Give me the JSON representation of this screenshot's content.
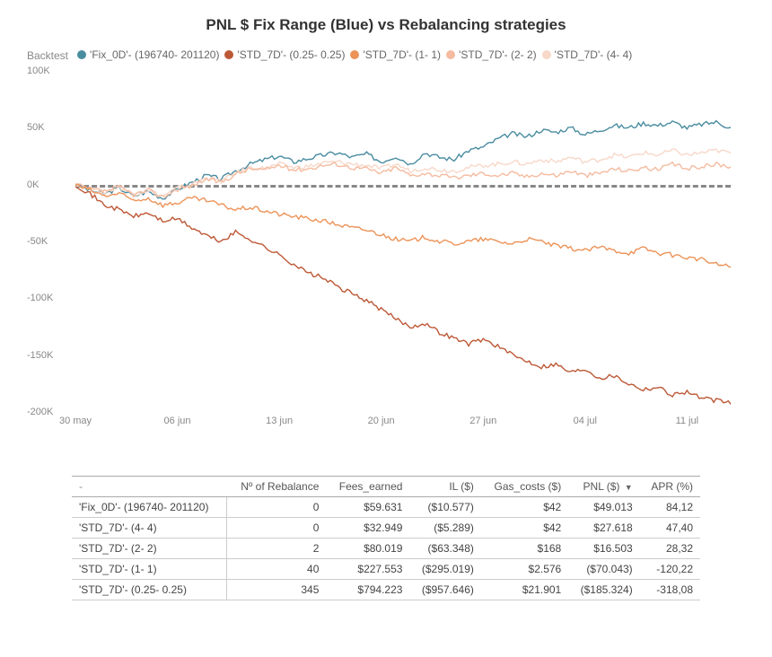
{
  "chart": {
    "type": "line",
    "title": "PNL $ Fix Range (Blue) vs Rebalancing strategies",
    "title_fontsize": 17,
    "legend_label": "Backtest",
    "legend": [
      {
        "name": "'Fix_0D'- (196740- 201120)",
        "color": "#4a8ca0"
      },
      {
        "name": "'STD_7D'- (0.25- 0.25)",
        "color": "#bd5836"
      },
      {
        "name": "'STD_7D'- (1- 1)",
        "color": "#ec9358"
      },
      {
        "name": "'STD_7D'- (2- 2)",
        "color": "#f4bba0"
      },
      {
        "name": "'STD_7D'- (4- 4)",
        "color": "#f7d8c9"
      }
    ],
    "background_color": "#ffffff",
    "zero_line_color": "#888888",
    "grid": false,
    "ylim": [
      -200000,
      100000
    ],
    "yticks": [
      {
        "v": 100000,
        "label": "100K"
      },
      {
        "v": 50000,
        "label": "50K"
      },
      {
        "v": 0,
        "label": "0K"
      },
      {
        "v": -50000,
        "label": "-50K"
      },
      {
        "v": -100000,
        "label": "-100K"
      },
      {
        "v": -150000,
        "label": "-150K"
      },
      {
        "v": -200000,
        "label": "-200K"
      }
    ],
    "xlim": [
      0,
      45
    ],
    "xticks": [
      {
        "v": 0,
        "label": "30 may"
      },
      {
        "v": 7,
        "label": "06 jun"
      },
      {
        "v": 14,
        "label": "13 jun"
      },
      {
        "v": 21,
        "label": "20 jun"
      },
      {
        "v": 28,
        "label": "27 jun"
      },
      {
        "v": 35,
        "label": "04 jul"
      },
      {
        "v": 42,
        "label": "11 jul"
      }
    ],
    "line_width": 1.4,
    "series": [
      {
        "color": "#4a8ca0",
        "name": "Fix_0D",
        "y": [
          0,
          -5,
          -8,
          -3,
          -10,
          -6,
          -12,
          -4,
          2,
          8,
          5,
          12,
          18,
          22,
          25,
          20,
          23,
          26,
          28,
          24,
          27,
          20,
          25,
          18,
          28,
          24,
          22,
          30,
          33,
          40,
          45,
          42,
          48,
          46,
          50,
          44,
          48,
          52,
          50,
          54,
          52,
          55,
          50,
          53,
          55,
          50
        ]
      },
      {
        "color": "#f7d8c9",
        "name": "STD_7D 4-4",
        "y": [
          0,
          -4,
          -7,
          -2,
          -8,
          -5,
          -10,
          -3,
          0,
          6,
          3,
          10,
          15,
          14,
          18,
          15,
          16,
          19,
          20,
          18,
          17,
          14,
          18,
          12,
          15,
          13,
          12,
          15,
          17,
          18,
          20,
          18,
          22,
          20,
          24,
          20,
          22,
          26,
          24,
          28,
          26,
          30,
          26,
          28,
          30,
          28
        ]
      },
      {
        "color": "#f4bba0",
        "name": "STD_7D 2-2",
        "y": [
          0,
          -4,
          -6,
          -2,
          -9,
          -5,
          -11,
          -4,
          -1,
          5,
          2,
          9,
          14,
          13,
          17,
          13,
          14,
          17,
          18,
          15,
          14,
          10,
          15,
          8,
          10,
          8,
          6,
          8,
          10,
          8,
          10,
          7,
          10,
          8,
          12,
          8,
          10,
          14,
          12,
          15,
          13,
          18,
          14,
          16,
          18,
          16
        ]
      },
      {
        "color": "#ec9358",
        "name": "STD_7D 1-1",
        "y": [
          0,
          -5,
          -10,
          -8,
          -14,
          -12,
          -18,
          -16,
          -12,
          -14,
          -18,
          -22,
          -20,
          -23,
          -26,
          -28,
          -30,
          -32,
          -35,
          -38,
          -40,
          -44,
          -48,
          -50,
          -46,
          -50,
          -52,
          -50,
          -48,
          -50,
          -52,
          -48,
          -50,
          -54,
          -56,
          -58,
          -55,
          -58,
          -60,
          -56,
          -60,
          -62,
          -64,
          -66,
          -70,
          -72
        ]
      },
      {
        "color": "#bd5836",
        "name": "STD_7D 0.25",
        "y": [
          0,
          -8,
          -18,
          -22,
          -28,
          -25,
          -32,
          -30,
          -38,
          -45,
          -50,
          -42,
          -48,
          -55,
          -62,
          -70,
          -78,
          -82,
          -90,
          -96,
          -102,
          -110,
          -118,
          -125,
          -122,
          -130,
          -135,
          -140,
          -136,
          -142,
          -150,
          -155,
          -160,
          -158,
          -165,
          -162,
          -170,
          -168,
          -175,
          -180,
          -178,
          -185,
          -182,
          -188,
          -190,
          -192
        ]
      }
    ]
  },
  "table": {
    "columns": [
      {
        "label": "-",
        "align": "left"
      },
      {
        "label": "Nº of Rebalance",
        "align": "right"
      },
      {
        "label": "Fees_earned",
        "align": "right"
      },
      {
        "label": "IL ($)",
        "align": "right"
      },
      {
        "label": "Gas_costs ($)",
        "align": "right"
      },
      {
        "label": "PNL ($)",
        "align": "right",
        "sorted": true
      },
      {
        "label": "APR (%)",
        "align": "right"
      }
    ],
    "rows": [
      [
        "'Fix_0D'- (196740- 201120)",
        "0",
        "$59.631",
        "($10.577)",
        "$42",
        "$49.013",
        "84,12"
      ],
      [
        "'STD_7D'- (4- 4)",
        "0",
        "$32.949",
        "($5.289)",
        "$42",
        "$27.618",
        "47,40"
      ],
      [
        "'STD_7D'- (2- 2)",
        "2",
        "$80.019",
        "($63.348)",
        "$168",
        "$16.503",
        "28,32"
      ],
      [
        "'STD_7D'- (1- 1)",
        "40",
        "$227.553",
        "($295.019)",
        "$2.576",
        "($70.043)",
        "-120,22"
      ],
      [
        "'STD_7D'- (0.25- 0.25)",
        "345",
        "$794.223",
        "($957.646)",
        "$21.901",
        "($185.324)",
        "-318,08"
      ]
    ],
    "border_color": "#cccccc",
    "font_size": 12
  }
}
